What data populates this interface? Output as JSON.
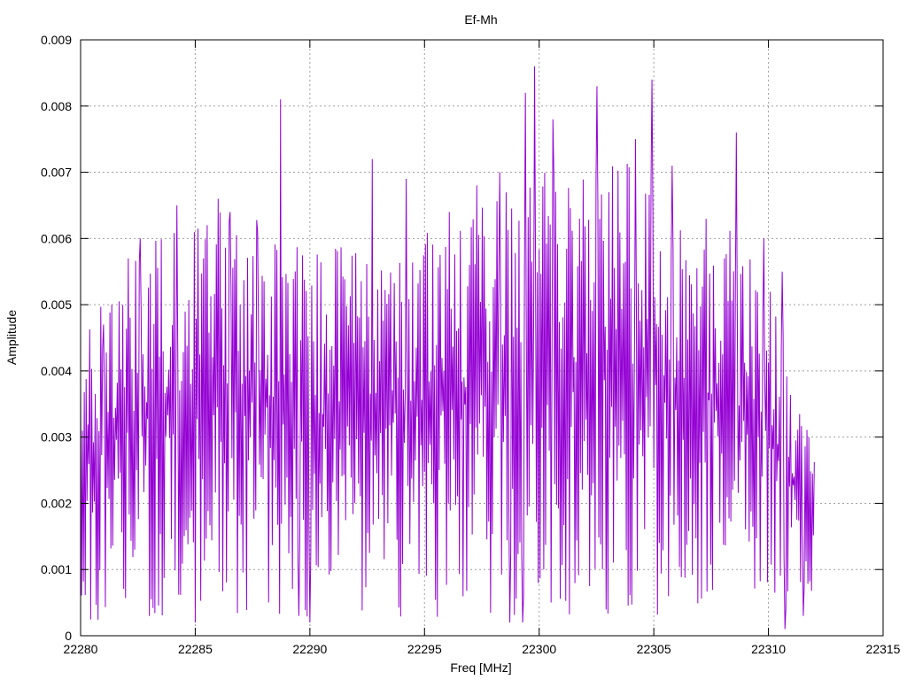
{
  "chart_data": {
    "type": "line",
    "title": "Ef-Mh",
    "xlabel": "Freq [MHz]",
    "ylabel": "Amplitude",
    "xlim": [
      22280,
      22315
    ],
    "ylim": [
      0,
      0.009
    ],
    "xticks": [
      "22280",
      "22285",
      "22290",
      "22295",
      "22300",
      "22305",
      "22310",
      "22315"
    ],
    "yticks": [
      "0",
      "0.001",
      "0.002",
      "0.003",
      "0.004",
      "0.005",
      "0.006",
      "0.007",
      "0.008",
      "0.009"
    ],
    "grid": true,
    "series": [
      {
        "color": "#9400d3",
        "x_start": 22280.0,
        "x_end": 22312.0,
        "sample_count": 800,
        "envelope_x": [
          22280,
          22282,
          22284,
          22286,
          22288,
          22290,
          22292,
          22294,
          22296,
          22298,
          22300,
          22302,
          22304,
          22306,
          22308,
          22310,
          22311,
          22312
        ],
        "envelope_y": [
          0.0026,
          0.0032,
          0.0036,
          0.0037,
          0.0036,
          0.0033,
          0.0034,
          0.0035,
          0.0035,
          0.0038,
          0.004,
          0.004,
          0.0041,
          0.0038,
          0.0036,
          0.0032,
          0.0024,
          0.0016
        ],
        "peaks": [
          {
            "x": 22281.0,
            "y": 0.0047
          },
          {
            "x": 22282.1,
            "y": 0.0057
          },
          {
            "x": 22282.6,
            "y": 0.006
          },
          {
            "x": 22284.2,
            "y": 0.0065
          },
          {
            "x": 22285.5,
            "y": 0.0062
          },
          {
            "x": 22286.0,
            "y": 0.0066
          },
          {
            "x": 22286.5,
            "y": 0.0064
          },
          {
            "x": 22287.7,
            "y": 0.0061
          },
          {
            "x": 22288.7,
            "y": 0.0081
          },
          {
            "x": 22290.0,
            "y": 0.0063
          },
          {
            "x": 22292.7,
            "y": 0.0072
          },
          {
            "x": 22294.2,
            "y": 0.0069
          },
          {
            "x": 22296.1,
            "y": 0.0064
          },
          {
            "x": 22297.3,
            "y": 0.0068
          },
          {
            "x": 22298.3,
            "y": 0.007
          },
          {
            "x": 22299.4,
            "y": 0.0082
          },
          {
            "x": 22299.8,
            "y": 0.0086
          },
          {
            "x": 22300.6,
            "y": 0.0078
          },
          {
            "x": 22302.5,
            "y": 0.0083
          },
          {
            "x": 22304.2,
            "y": 0.0075
          },
          {
            "x": 22304.9,
            "y": 0.0084
          },
          {
            "x": 22305.8,
            "y": 0.0071
          },
          {
            "x": 22308.6,
            "y": 0.0076
          },
          {
            "x": 22309.8,
            "y": 0.006
          },
          {
            "x": 22310.6,
            "y": 0.0055
          }
        ],
        "troughs": [
          {
            "x": 22283.0,
            "y": 0.0003
          },
          {
            "x": 22285.0,
            "y": 0.0002
          },
          {
            "x": 22289.5,
            "y": 0.0003
          },
          {
            "x": 22290.0,
            "y": 0.0002
          },
          {
            "x": 22298.7,
            "y": 0.0002
          },
          {
            "x": 22299.3,
            "y": 0.0002
          },
          {
            "x": 22310.7,
            "y": 0.0001
          },
          {
            "x": 22311.5,
            "y": 0.0003
          }
        ]
      }
    ]
  }
}
